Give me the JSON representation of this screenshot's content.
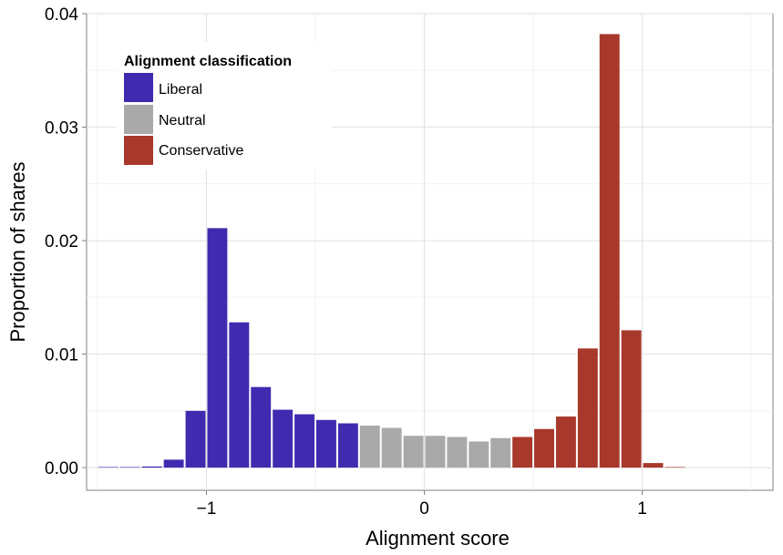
{
  "chart_data": {
    "type": "bar",
    "xlabel": "Alignment score",
    "ylabel": "Proportion of shares",
    "xlim": [
      -1.55,
      1.6
    ],
    "ylim": [
      -0.002,
      0.04
    ],
    "x_ticks": [
      {
        "value": -1,
        "label": "−1"
      },
      {
        "value": 0,
        "label": "0"
      },
      {
        "value": 1,
        "label": "1"
      }
    ],
    "y_ticks": [
      {
        "value": 0,
        "label": "0.00"
      },
      {
        "value": 0.01,
        "label": "0.01"
      },
      {
        "value": 0.02,
        "label": "0.02"
      },
      {
        "value": 0.03,
        "label": "0.03"
      },
      {
        "value": 0.04,
        "label": "0.04"
      }
    ],
    "grid": true,
    "bin_width": 0.1,
    "legend": {
      "title": "Alignment classification",
      "position": "top-left",
      "items": [
        {
          "key": "liberal",
          "label": "Liberal",
          "color": "#3f2ab0"
        },
        {
          "key": "neutral",
          "label": "Neutral",
          "color": "#a9a9a9"
        },
        {
          "key": "conservative",
          "label": "Conservative",
          "color": "#a8382b"
        }
      ]
    },
    "bars": [
      {
        "x": -1.45,
        "value": 2e-05,
        "class": "liberal"
      },
      {
        "x": -1.35,
        "value": 4e-05,
        "class": "liberal"
      },
      {
        "x": -1.25,
        "value": 0.0001,
        "class": "liberal"
      },
      {
        "x": -1.15,
        "value": 0.0007,
        "class": "liberal"
      },
      {
        "x": -1.05,
        "value": 0.005,
        "class": "liberal"
      },
      {
        "x": -0.95,
        "value": 0.0211,
        "class": "liberal"
      },
      {
        "x": -0.85,
        "value": 0.0128,
        "class": "liberal"
      },
      {
        "x": -0.75,
        "value": 0.0071,
        "class": "liberal"
      },
      {
        "x": -0.65,
        "value": 0.0051,
        "class": "liberal"
      },
      {
        "x": -0.55,
        "value": 0.0047,
        "class": "liberal"
      },
      {
        "x": -0.45,
        "value": 0.0042,
        "class": "liberal"
      },
      {
        "x": -0.35,
        "value": 0.0039,
        "class": "liberal"
      },
      {
        "x": -0.25,
        "value": 0.0037,
        "class": "neutral"
      },
      {
        "x": -0.15,
        "value": 0.0035,
        "class": "neutral"
      },
      {
        "x": -0.05,
        "value": 0.0028,
        "class": "neutral"
      },
      {
        "x": 0.05,
        "value": 0.0028,
        "class": "neutral"
      },
      {
        "x": 0.15,
        "value": 0.0027,
        "class": "neutral"
      },
      {
        "x": 0.25,
        "value": 0.0023,
        "class": "neutral"
      },
      {
        "x": 0.35,
        "value": 0.0026,
        "class": "neutral"
      },
      {
        "x": 0.45,
        "value": 0.0027,
        "class": "conservative"
      },
      {
        "x": 0.55,
        "value": 0.0034,
        "class": "conservative"
      },
      {
        "x": 0.65,
        "value": 0.0045,
        "class": "conservative"
      },
      {
        "x": 0.75,
        "value": 0.0105,
        "class": "conservative"
      },
      {
        "x": 0.85,
        "value": 0.0382,
        "class": "conservative"
      },
      {
        "x": 0.95,
        "value": 0.0121,
        "class": "conservative"
      },
      {
        "x": 1.05,
        "value": 0.0004,
        "class": "conservative"
      },
      {
        "x": 1.15,
        "value": 5e-05,
        "class": "conservative"
      }
    ]
  }
}
